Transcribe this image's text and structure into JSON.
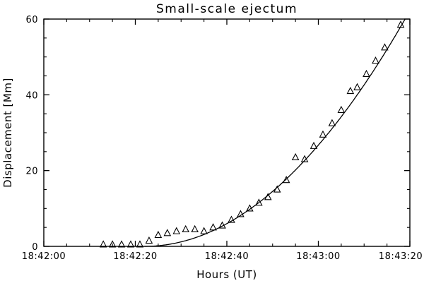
{
  "chart_data": {
    "type": "scatter",
    "title": "Small-scale ejectum",
    "xlabel": "Hours (UT)",
    "ylabel": "Displacement [Mm]",
    "x_unit": "seconds after 18:42:00 UT",
    "xlim": [
      0,
      80
    ],
    "ylim": [
      0,
      60
    ],
    "grid": false,
    "legend": "none",
    "x_major_ticks": [
      {
        "t": 0,
        "label": "18:42:00"
      },
      {
        "t": 20,
        "label": "18:42:20"
      },
      {
        "t": 40,
        "label": "18:42:40"
      },
      {
        "t": 60,
        "label": "18:43:00"
      },
      {
        "t": 80,
        "label": "18:43:20"
      }
    ],
    "x_minor_step": 5,
    "y_major_ticks": [
      {
        "v": 0,
        "label": "0"
      },
      {
        "v": 20,
        "label": "20"
      },
      {
        "v": 40,
        "label": "40"
      },
      {
        "v": 60,
        "label": "60"
      }
    ],
    "y_minor_step": 5,
    "series": [
      {
        "name": "displacement-measurements",
        "kind": "scatter",
        "marker": "triangle-open",
        "points": [
          [
            13,
            0.5
          ],
          [
            15,
            0.5
          ],
          [
            17,
            0.5
          ],
          [
            19,
            0.5
          ],
          [
            21,
            0.5
          ],
          [
            23,
            1.5
          ],
          [
            25,
            3.0
          ],
          [
            27,
            3.5
          ],
          [
            29,
            4.0
          ],
          [
            31,
            4.5
          ],
          [
            33,
            4.5
          ],
          [
            35,
            4.0
          ],
          [
            37,
            5.0
          ],
          [
            39,
            5.5
          ],
          [
            41,
            7.0
          ],
          [
            43,
            8.5
          ],
          [
            45,
            10.0
          ],
          [
            47,
            11.5
          ],
          [
            49,
            13.0
          ],
          [
            51,
            15.0
          ],
          [
            53,
            17.5
          ],
          [
            55,
            23.5
          ],
          [
            57,
            23.0
          ],
          [
            59,
            26.5
          ],
          [
            61,
            29.5
          ],
          [
            63,
            32.5
          ],
          [
            65,
            36.0
          ],
          [
            67,
            41.0
          ],
          [
            68.5,
            42.0
          ],
          [
            70.5,
            45.5
          ],
          [
            72.5,
            49.0
          ],
          [
            74.5,
            52.5
          ],
          [
            78,
            58.5
          ]
        ]
      },
      {
        "name": "parabolic-fit",
        "kind": "line",
        "fit": {
          "form": "a*(t-t0)^2",
          "a": 0.0185,
          "t0": 22,
          "t_range": [
            22,
            80
          ]
        }
      }
    ],
    "colors": {
      "axis": "#000000",
      "marker": "#000000",
      "fit_line": "#000000",
      "background": "#ffffff"
    }
  }
}
